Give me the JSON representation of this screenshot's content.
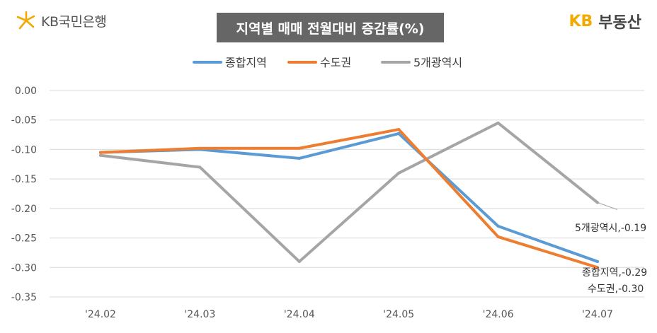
{
  "header": {
    "left_brand": "KB국민은행",
    "right_brand_prefix": "KB",
    "right_brand_suffix": "부동산"
  },
  "chart_data": {
    "type": "line",
    "title": "지역별 매매 전월대비 증감률(%)",
    "categories": [
      "'24.02",
      "'24.03",
      "'24.04",
      "'24.05",
      "'24.06",
      "'24.07"
    ],
    "yticks": [
      "0.00",
      "-0.05",
      "-0.10",
      "-0.15",
      "-0.20",
      "-0.25",
      "-0.30",
      "-0.35"
    ],
    "ylim": [
      -0.35,
      0.0
    ],
    "legend_position": "top",
    "grid": "horizontal",
    "series": [
      {
        "name": "종합지역",
        "color": "#5b9bd5",
        "values": [
          -0.105,
          -0.1,
          -0.115,
          -0.073,
          -0.23,
          -0.29
        ],
        "end_label": "종합지역,-0.29"
      },
      {
        "name": "수도권",
        "color": "#ed7d31",
        "values": [
          -0.105,
          -0.098,
          -0.098,
          -0.066,
          -0.248,
          -0.3
        ],
        "end_label": "수도권,-0.30"
      },
      {
        "name": "5개광역시",
        "color": "#a5a5a5",
        "values": [
          -0.11,
          -0.13,
          -0.29,
          -0.14,
          -0.055,
          -0.19
        ],
        "end_label": "5개광역시,-0.19"
      }
    ]
  }
}
